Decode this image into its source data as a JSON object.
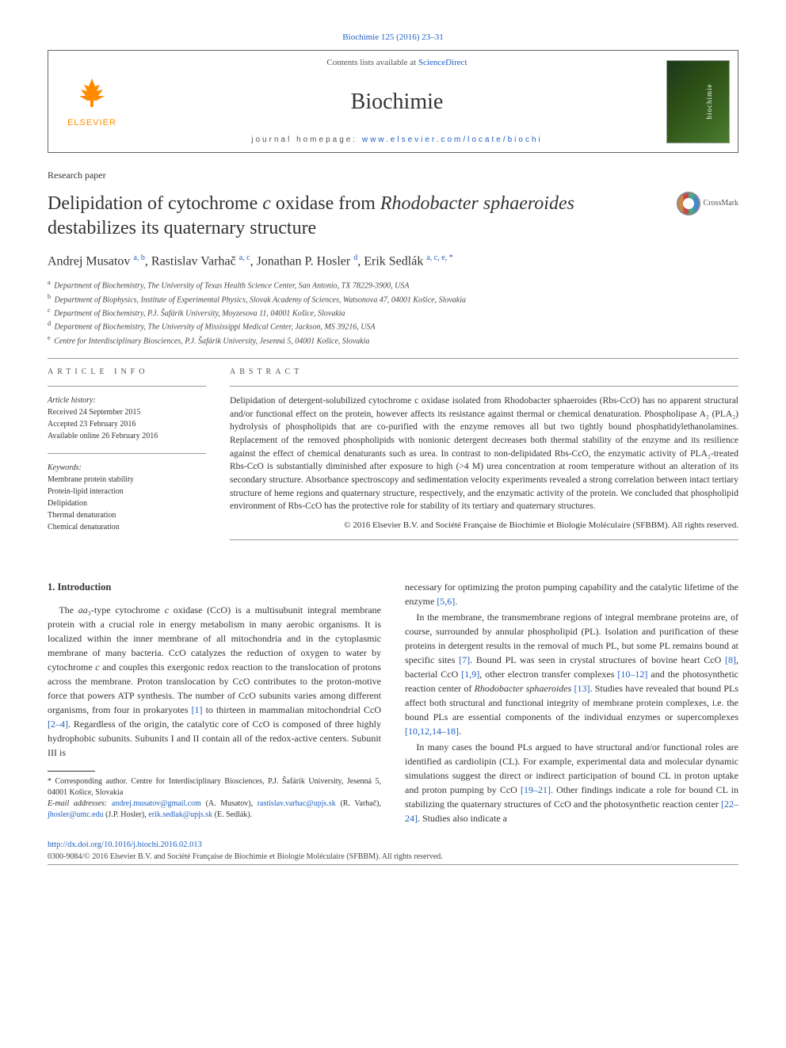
{
  "citation": {
    "text": "Biochimie 125 (2016) 23–31",
    "url": "#"
  },
  "header": {
    "contents_prefix": "Contents lists available at ",
    "contents_link": "ScienceDirect",
    "journal_title": "Biochimie",
    "homepage_prefix": "journal homepage: ",
    "homepage_link": "www.elsevier.com/locate/biochi",
    "publisher_name": "ELSEVIER"
  },
  "crossmark": "CrossMark",
  "paper_type": "Research paper",
  "title": "Delipidation of cytochrome c oxidase from Rhodobacter sphaeroides destabilizes its quaternary structure",
  "authors_html": "Andrej Musatov <sup>a, b</sup>, Rastislav Varhač <sup>a, c</sup>, Jonathan P. Hosler <sup>d</sup>, Erik Sedlák <sup>a, c, e, *</sup>",
  "affiliations": [
    {
      "sup": "a",
      "text": "Department of Biochemistry, The University of Texas Health Science Center, San Antonio, TX 78229-3900, USA"
    },
    {
      "sup": "b",
      "text": "Department of Biophysics, Institute of Experimental Physics, Slovak Academy of Sciences, Watsonova 47, 04001 Košice, Slovakia"
    },
    {
      "sup": "c",
      "text": "Department of Biochemistry, P.J. Šafárik University, Moyzesova 11, 04001 Košice, Slovakia"
    },
    {
      "sup": "d",
      "text": "Department of Biochemistry, The University of Mississippi Medical Center, Jackson, MS 39216, USA"
    },
    {
      "sup": "e",
      "text": "Centre for Interdisciplinary Biosciences, P.J. Šafárik University, Jesenná 5, 04001 Košice, Slovakia"
    }
  ],
  "article_info": {
    "heading": "ARTICLE INFO",
    "history_label": "Article history:",
    "received": "Received 24 September 2015",
    "accepted": "Accepted 23 February 2016",
    "online": "Available online 26 February 2016",
    "keywords_label": "Keywords:",
    "keywords": [
      "Membrane protein stability",
      "Protein-lipid interaction",
      "Delipidation",
      "Thermal denaturation",
      "Chemical denaturation"
    ]
  },
  "abstract": {
    "heading": "ABSTRACT",
    "text": "Delipidation of detergent-solubilized cytochrome c oxidase isolated from Rhodobacter sphaeroides (Rbs-CcO) has no apparent structural and/or functional effect on the protein, however affects its resistance against thermal or chemical denaturation. Phospholipase A₂ (PLA₂) hydrolysis of phospholipids that are co-purified with the enzyme removes all but two tightly bound phosphatidylethanolamines. Replacement of the removed phospholipids with nonionic detergent decreases both thermal stability of the enzyme and its resilience against the effect of chemical denaturants such as urea. In contrast to non-delipidated Rbs-CcO, the enzymatic activity of PLA₂-treated Rbs-CcO is substantially diminished after exposure to high (>4 M) urea concentration at room temperature without an alteration of its secondary structure. Absorbance spectroscopy and sedimentation velocity experiments revealed a strong correlation between intact tertiary structure of heme regions and quaternary structure, respectively, and the enzymatic activity of the protein. We concluded that phospholipid environment of Rbs-CcO has the protective role for stability of its tertiary and quaternary structures.",
    "copyright": "© 2016 Elsevier B.V. and Société Française de Biochimie et Biologie Moléculaire (SFBBM). All rights reserved."
  },
  "body": {
    "heading": "1. Introduction",
    "col1_p1": "The aa₃-type cytochrome c oxidase (CcO) is a multisubunit integral membrane protein with a crucial role in energy metabolism in many aerobic organisms. It is localized within the inner membrane of all mitochondria and in the cytoplasmic membrane of many bacteria. CcO catalyzes the reduction of oxygen to water by cytochrome c and couples this exergonic redox reaction to the translocation of protons across the membrane. Proton translocation by CcO contributes to the proton-motive force that powers ATP synthesis. The number of CcO subunits varies among different organisms, from four in prokaryotes [1] to thirteen in mammalian mitochondrial CcO [2–4]. Regardless of the origin, the catalytic core of CcO is composed of three highly hydrophobic subunits. Subunits I and II contain all of the redox-active centers. Subunit III is",
    "col2_p1": "necessary for optimizing the proton pumping capability and the catalytic lifetime of the enzyme [5,6].",
    "col2_p2": "In the membrane, the transmembrane regions of integral membrane proteins are, of course, surrounded by annular phospholipid (PL). Isolation and purification of these proteins in detergent results in the removal of much PL, but some PL remains bound at specific sites [7]. Bound PL was seen in crystal structures of bovine heart CcO [8], bacterial CcO [1,9], other electron transfer complexes [10–12] and the photosynthetic reaction center of Rhodobacter sphaeroides [13]. Studies have revealed that bound PLs affect both structural and functional integrity of membrane protein complexes, i.e. the bound PLs are essential components of the individual enzymes or supercomplexes [10,12,14–18].",
    "col2_p3": "In many cases the bound PLs argued to have structural and/or functional roles are identified as cardiolipin (CL). For example, experimental data and molecular dynamic simulations suggest the direct or indirect participation of bound CL in proton uptake and proton pumping by CcO [19–21]. Other findings indicate a role for bound CL in stabilizing the quaternary structures of CcO and the photosynthetic reaction center [22–24]. Studies also indicate a"
  },
  "footnotes": {
    "corr": "* Corresponding author. Centre for Interdisciplinary Biosciences, P.J. Šafárik University, Jesenná 5, 04001 Košice, Slovakia",
    "email_label": "E-mail addresses: ",
    "emails_html": "<a href='#'>andrej.musatov@gmail.com</a> (A. Musatov), <a href='#'>rastislav.varhac@upjs.sk</a> (R. Varhač), <a href='#'>jhosler@umc.edu</a> (J.P. Hosler), <a href='#'>erik.sedlak@upjs.sk</a> (E. Sedlák)."
  },
  "doi": "http://dx.doi.org/10.1016/j.biochi.2016.02.013",
  "bottom_copyright": "0300-9084/© 2016 Elsevier B.V. and Société Française de Biochimie et Biologie Moléculaire (SFBBM). All rights reserved."
}
